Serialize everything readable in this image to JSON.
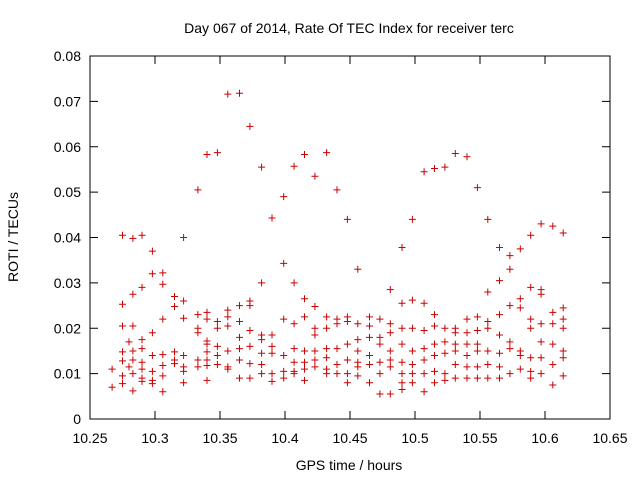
{
  "chart_data": {
    "type": "scatter",
    "title": "Day 067 of 2014, Rate Of TEC Index for receiver terc",
    "xlabel": "GPS time / hours",
    "ylabel": "ROTI / TECUs",
    "xlim": [
      10.25,
      10.65
    ],
    "ylim": [
      0,
      0.08
    ],
    "xticks": [
      10.25,
      10.3,
      10.35,
      10.4,
      10.45,
      10.5,
      10.55,
      10.6,
      10.65
    ],
    "xtick_labels": [
      "10.25",
      "10.3",
      "10.35",
      "10.4",
      "10.45",
      "10.5",
      "10.55",
      "10.6",
      "10.65"
    ],
    "yticks": [
      0,
      0.01,
      0.02,
      0.03,
      0.04,
      0.05,
      0.06,
      0.07,
      0.08
    ],
    "ytick_labels": [
      "0",
      "0.01",
      "0.02",
      "0.03",
      "0.04",
      "0.05",
      "0.06",
      "0.07",
      "0.08"
    ],
    "grid": false,
    "marker": "+",
    "color": "#cc0000",
    "points": [
      [
        10.267,
        0.007
      ],
      [
        10.267,
        0.011
      ],
      [
        10.275,
        0.0405
      ],
      [
        10.275,
        0.0253
      ],
      [
        10.275,
        0.0205
      ],
      [
        10.275,
        0.0148
      ],
      [
        10.275,
        0.0128
      ],
      [
        10.275,
        0.0095
      ],
      [
        10.275,
        0.0078
      ],
      [
        10.28,
        0.017
      ],
      [
        10.28,
        0.0115
      ],
      [
        10.283,
        0.0398
      ],
      [
        10.283,
        0.0275
      ],
      [
        10.283,
        0.0205
      ],
      [
        10.283,
        0.015
      ],
      [
        10.283,
        0.013
      ],
      [
        10.283,
        0.01
      ],
      [
        10.283,
        0.0062
      ],
      [
        10.29,
        0.0405
      ],
      [
        10.29,
        0.029
      ],
      [
        10.29,
        0.0175
      ],
      [
        10.29,
        0.0155
      ],
      [
        10.29,
        0.0125
      ],
      [
        10.29,
        0.011
      ],
      [
        10.29,
        0.009
      ],
      [
        10.29,
        0.0083
      ],
      [
        10.298,
        0.037
      ],
      [
        10.298,
        0.032
      ],
      [
        10.298,
        0.019
      ],
      [
        10.298,
        0.014
      ],
      [
        10.298,
        0.0105
      ],
      [
        10.298,
        0.0085
      ],
      [
        10.298,
        0.0078
      ],
      [
        10.306,
        0.0322
      ],
      [
        10.306,
        0.0297
      ],
      [
        10.306,
        0.022
      ],
      [
        10.306,
        0.0142
      ],
      [
        10.306,
        0.0118
      ],
      [
        10.306,
        0.0095
      ],
      [
        10.306,
        0.006
      ],
      [
        10.315,
        0.027
      ],
      [
        10.315,
        0.0248
      ],
      [
        10.315,
        0.0148
      ],
      [
        10.315,
        0.013
      ],
      [
        10.315,
        0.0122
      ],
      [
        10.322,
        0.04
      ],
      [
        10.322,
        0.026
      ],
      [
        10.322,
        0.0222
      ],
      [
        10.322,
        0.014
      ],
      [
        10.322,
        0.0115
      ],
      [
        10.322,
        0.0105
      ],
      [
        10.322,
        0.008
      ],
      [
        10.333,
        0.0505
      ],
      [
        10.333,
        0.023
      ],
      [
        10.333,
        0.02
      ],
      [
        10.333,
        0.019
      ],
      [
        10.333,
        0.013
      ],
      [
        10.333,
        0.0115
      ],
      [
        10.34,
        0.0583
      ],
      [
        10.34,
        0.0235
      ],
      [
        10.34,
        0.022
      ],
      [
        10.34,
        0.0172
      ],
      [
        10.34,
        0.0165
      ],
      [
        10.34,
        0.0148
      ],
      [
        10.34,
        0.013
      ],
      [
        10.34,
        0.0118
      ],
      [
        10.34,
        0.0085
      ],
      [
        10.348,
        0.0587
      ],
      [
        10.348,
        0.0215
      ],
      [
        10.348,
        0.02
      ],
      [
        10.348,
        0.016
      ],
      [
        10.348,
        0.014
      ],
      [
        10.348,
        0.012
      ],
      [
        10.356,
        0.0716
      ],
      [
        10.356,
        0.024
      ],
      [
        10.356,
        0.0225
      ],
      [
        10.356,
        0.0205
      ],
      [
        10.356,
        0.015
      ],
      [
        10.356,
        0.0115
      ],
      [
        10.356,
        0.011
      ],
      [
        10.365,
        0.0718
      ],
      [
        10.365,
        0.025
      ],
      [
        10.365,
        0.0215
      ],
      [
        10.365,
        0.018
      ],
      [
        10.365,
        0.0155
      ],
      [
        10.365,
        0.013
      ],
      [
        10.365,
        0.009
      ],
      [
        10.373,
        0.0645
      ],
      [
        10.373,
        0.026
      ],
      [
        10.373,
        0.025
      ],
      [
        10.373,
        0.0195
      ],
      [
        10.373,
        0.016
      ],
      [
        10.373,
        0.0122
      ],
      [
        10.373,
        0.009
      ],
      [
        10.382,
        0.0555
      ],
      [
        10.382,
        0.03
      ],
      [
        10.382,
        0.0185
      ],
      [
        10.382,
        0.0175
      ],
      [
        10.382,
        0.0145
      ],
      [
        10.382,
        0.012
      ],
      [
        10.382,
        0.01
      ],
      [
        10.39,
        0.0443
      ],
      [
        10.39,
        0.0185
      ],
      [
        10.39,
        0.016
      ],
      [
        10.39,
        0.0145
      ],
      [
        10.39,
        0.01
      ],
      [
        10.39,
        0.0083
      ],
      [
        10.399,
        0.049
      ],
      [
        10.399,
        0.0343
      ],
      [
        10.399,
        0.022
      ],
      [
        10.399,
        0.014
      ],
      [
        10.399,
        0.0105
      ],
      [
        10.399,
        0.009
      ],
      [
        10.407,
        0.0557
      ],
      [
        10.407,
        0.03
      ],
      [
        10.407,
        0.021
      ],
      [
        10.407,
        0.0155
      ],
      [
        10.407,
        0.0125
      ],
      [
        10.407,
        0.0105
      ],
      [
        10.407,
        0.01
      ],
      [
        10.415,
        0.0583
      ],
      [
        10.415,
        0.0265
      ],
      [
        10.415,
        0.0225
      ],
      [
        10.415,
        0.015
      ],
      [
        10.415,
        0.0125
      ],
      [
        10.415,
        0.011
      ],
      [
        10.415,
        0.0085
      ],
      [
        10.423,
        0.0535
      ],
      [
        10.423,
        0.0248
      ],
      [
        10.423,
        0.02
      ],
      [
        10.423,
        0.0185
      ],
      [
        10.423,
        0.015
      ],
      [
        10.423,
        0.013
      ],
      [
        10.423,
        0.0115
      ],
      [
        10.432,
        0.0587
      ],
      [
        10.432,
        0.0225
      ],
      [
        10.432,
        0.02
      ],
      [
        10.432,
        0.0155
      ],
      [
        10.432,
        0.0135
      ],
      [
        10.432,
        0.011
      ],
      [
        10.432,
        0.01
      ],
      [
        10.44,
        0.0505
      ],
      [
        10.44,
        0.022
      ],
      [
        10.44,
        0.021
      ],
      [
        10.44,
        0.0155
      ],
      [
        10.44,
        0.012
      ],
      [
        10.44,
        0.01
      ],
      [
        10.448,
        0.044
      ],
      [
        10.448,
        0.0225
      ],
      [
        10.448,
        0.0215
      ],
      [
        10.448,
        0.0165
      ],
      [
        10.448,
        0.013
      ],
      [
        10.448,
        0.01
      ],
      [
        10.448,
        0.008
      ],
      [
        10.456,
        0.033
      ],
      [
        10.456,
        0.021
      ],
      [
        10.456,
        0.0175
      ],
      [
        10.456,
        0.015
      ],
      [
        10.456,
        0.0125
      ],
      [
        10.456,
        0.0115
      ],
      [
        10.456,
        0.0095
      ],
      [
        10.465,
        0.0225
      ],
      [
        10.465,
        0.0205
      ],
      [
        10.465,
        0.018
      ],
      [
        10.465,
        0.014
      ],
      [
        10.465,
        0.012
      ],
      [
        10.465,
        0.008
      ],
      [
        10.473,
        0.022
      ],
      [
        10.473,
        0.018
      ],
      [
        10.473,
        0.0165
      ],
      [
        10.473,
        0.0125
      ],
      [
        10.473,
        0.01
      ],
      [
        10.473,
        0.0055
      ],
      [
        10.481,
        0.0285
      ],
      [
        10.481,
        0.021
      ],
      [
        10.481,
        0.019
      ],
      [
        10.481,
        0.015
      ],
      [
        10.481,
        0.013
      ],
      [
        10.481,
        0.0115
      ],
      [
        10.481,
        0.0055
      ],
      [
        10.49,
        0.0378
      ],
      [
        10.49,
        0.0255
      ],
      [
        10.49,
        0.02
      ],
      [
        10.49,
        0.0165
      ],
      [
        10.49,
        0.0125
      ],
      [
        10.49,
        0.01
      ],
      [
        10.49,
        0.008
      ],
      [
        10.49,
        0.0065
      ],
      [
        10.498,
        0.044
      ],
      [
        10.498,
        0.0262
      ],
      [
        10.498,
        0.02
      ],
      [
        10.498,
        0.015
      ],
      [
        10.498,
        0.012
      ],
      [
        10.498,
        0.01
      ],
      [
        10.498,
        0.008
      ],
      [
        10.507,
        0.0545
      ],
      [
        10.507,
        0.0255
      ],
      [
        10.507,
        0.0195
      ],
      [
        10.507,
        0.0155
      ],
      [
        10.507,
        0.013
      ],
      [
        10.507,
        0.01
      ],
      [
        10.507,
        0.006
      ],
      [
        10.515,
        0.0552
      ],
      [
        10.515,
        0.023
      ],
      [
        10.515,
        0.0205
      ],
      [
        10.515,
        0.0165
      ],
      [
        10.515,
        0.014
      ],
      [
        10.515,
        0.0105
      ],
      [
        10.515,
        0.008
      ],
      [
        10.523,
        0.0555
      ],
      [
        10.523,
        0.02
      ],
      [
        10.523,
        0.017
      ],
      [
        10.523,
        0.0145
      ],
      [
        10.523,
        0.01
      ],
      [
        10.523,
        0.0085
      ],
      [
        10.531,
        0.0585
      ],
      [
        10.531,
        0.02
      ],
      [
        10.531,
        0.019
      ],
      [
        10.531,
        0.0165
      ],
      [
        10.531,
        0.015
      ],
      [
        10.531,
        0.012
      ],
      [
        10.531,
        0.009
      ],
      [
        10.54,
        0.0578
      ],
      [
        10.54,
        0.022
      ],
      [
        10.54,
        0.019
      ],
      [
        10.54,
        0.0165
      ],
      [
        10.54,
        0.014
      ],
      [
        10.54,
        0.0115
      ],
      [
        10.54,
        0.009
      ],
      [
        10.548,
        0.051
      ],
      [
        10.548,
        0.0225
      ],
      [
        10.548,
        0.0195
      ],
      [
        10.548,
        0.0165
      ],
      [
        10.548,
        0.015
      ],
      [
        10.548,
        0.0115
      ],
      [
        10.548,
        0.009
      ],
      [
        10.556,
        0.044
      ],
      [
        10.556,
        0.028
      ],
      [
        10.556,
        0.0215
      ],
      [
        10.556,
        0.02
      ],
      [
        10.556,
        0.015
      ],
      [
        10.556,
        0.012
      ],
      [
        10.556,
        0.009
      ],
      [
        10.565,
        0.0378
      ],
      [
        10.565,
        0.0305
      ],
      [
        10.565,
        0.023
      ],
      [
        10.565,
        0.0185
      ],
      [
        10.565,
        0.0145
      ],
      [
        10.565,
        0.0115
      ],
      [
        10.565,
        0.009
      ],
      [
        10.573,
        0.036
      ],
      [
        10.573,
        0.033
      ],
      [
        10.573,
        0.025
      ],
      [
        10.573,
        0.017
      ],
      [
        10.573,
        0.0155
      ],
      [
        10.573,
        0.01
      ],
      [
        10.581,
        0.0375
      ],
      [
        10.581,
        0.0265
      ],
      [
        10.581,
        0.0245
      ],
      [
        10.581,
        0.015
      ],
      [
        10.581,
        0.014
      ],
      [
        10.581,
        0.011
      ],
      [
        10.589,
        0.0405
      ],
      [
        10.589,
        0.029
      ],
      [
        10.589,
        0.022
      ],
      [
        10.589,
        0.02
      ],
      [
        10.589,
        0.0135
      ],
      [
        10.589,
        0.0105
      ],
      [
        10.589,
        0.009
      ],
      [
        10.597,
        0.043
      ],
      [
        10.597,
        0.0285
      ],
      [
        10.597,
        0.0275
      ],
      [
        10.597,
        0.021
      ],
      [
        10.597,
        0.017
      ],
      [
        10.597,
        0.0135
      ],
      [
        10.597,
        0.01
      ],
      [
        10.606,
        0.0425
      ],
      [
        10.606,
        0.0235
      ],
      [
        10.606,
        0.021
      ],
      [
        10.606,
        0.0165
      ],
      [
        10.606,
        0.012
      ],
      [
        10.606,
        0.0075
      ],
      [
        10.614,
        0.041
      ],
      [
        10.614,
        0.0245
      ],
      [
        10.614,
        0.022
      ],
      [
        10.614,
        0.02
      ],
      [
        10.614,
        0.015
      ],
      [
        10.614,
        0.0135
      ],
      [
        10.614,
        0.0095
      ]
    ]
  }
}
